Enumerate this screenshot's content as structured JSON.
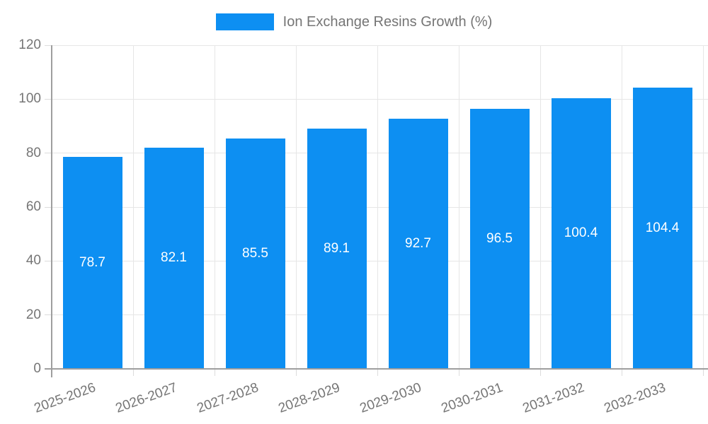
{
  "chart_data": {
    "type": "bar",
    "title": "Ion Exchange Resins Growth (%)",
    "categories": [
      "2025-2026",
      "2026-2027",
      "2027-2028",
      "2028-2029",
      "2029-2030",
      "2030-2031",
      "2031-2032",
      "2032-2033"
    ],
    "values": [
      78.7,
      82.1,
      85.5,
      89.1,
      92.7,
      96.5,
      100.4,
      104.4
    ],
    "value_labels": [
      "78.7",
      "82.1",
      "85.5",
      "89.1",
      "92.7",
      "96.5",
      "100.4",
      "104.4"
    ],
    "xlabel": "",
    "ylabel": "",
    "ylim": [
      0,
      120
    ],
    "yticks": [
      "0",
      "20",
      "40",
      "60",
      "80",
      "100",
      "120"
    ],
    "grid": true,
    "legend_position": "top",
    "colors": {
      "bar": "#0d8ff2",
      "bar_label": "#ffffff",
      "axis_text": "#757575",
      "grid": "#e6e6e6",
      "axis_line": "#9e9e9e",
      "tick": "#dcdcdc"
    }
  }
}
